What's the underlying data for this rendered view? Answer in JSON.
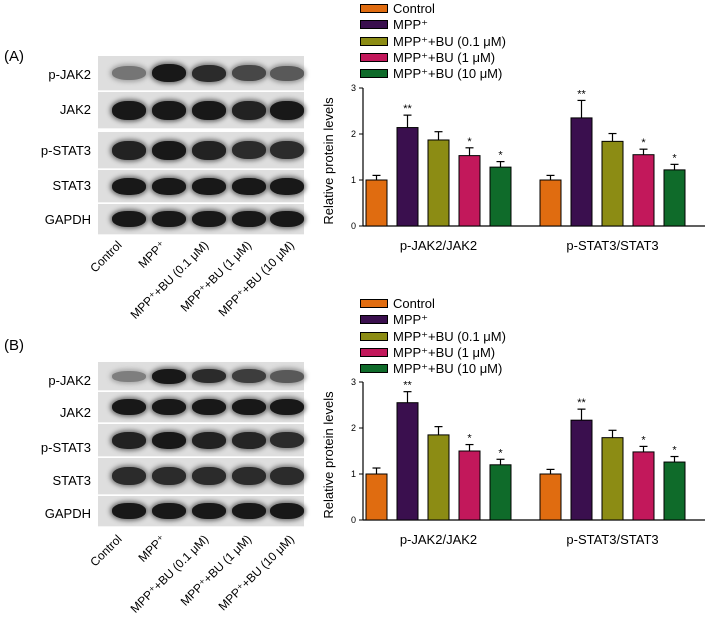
{
  "panels": [
    {
      "label": "(A)",
      "blot_rows": [
        "p-JAK2",
        "JAK2",
        "p-STAT3",
        "STAT3",
        "GAPDH"
      ],
      "lanes": [
        "Control",
        "MPP⁺",
        "MPP⁺+BU (0.1 μM)",
        "MPP⁺+BU (1 μM)",
        "MPP⁺+BU (10 μM)"
      ]
    },
    {
      "label": "(B)",
      "blot_rows": [
        "p-JAK2",
        "JAK2",
        "p-STAT3",
        "STAT3",
        "GAPDH"
      ],
      "lanes": [
        "Control",
        "MPP⁺",
        "MPP⁺+BU (0.1 μM)",
        "MPP⁺+BU (1 μM)",
        "MPP⁺+BU (10 μM)"
      ]
    }
  ],
  "legend_colors": [
    "#e06c10",
    "#3a0f4e",
    "#8c8c14",
    "#c2185b",
    "#0f6b2a"
  ],
  "chart_data": [
    {
      "type": "bar",
      "categories": [
        "p-JAK2/JAK2",
        "p-STAT3/STAT3"
      ],
      "ylabel": "Relative protein levels",
      "ylim": [
        0,
        3
      ],
      "yticks": [
        "0",
        "1",
        "2",
        "3"
      ],
      "series": [
        {
          "name": "Control",
          "values": [
            1.0,
            1.0
          ],
          "errors": [
            0.1,
            0.1
          ],
          "sig": [
            "",
            ""
          ]
        },
        {
          "name": "MPP⁺",
          "values": [
            2.14,
            2.35
          ],
          "errors": [
            0.27,
            0.38
          ],
          "sig": [
            "**",
            "**"
          ]
        },
        {
          "name": "MPP⁺+BU (0.1 μM)",
          "values": [
            1.87,
            1.84
          ],
          "errors": [
            0.18,
            0.17
          ],
          "sig": [
            "",
            ""
          ]
        },
        {
          "name": "MPP⁺+BU (1 μM)",
          "values": [
            1.53,
            1.55
          ],
          "errors": [
            0.17,
            0.12
          ],
          "sig": [
            "*",
            "*"
          ]
        },
        {
          "name": "MPP⁺+BU (10 μM)",
          "values": [
            1.28,
            1.22
          ],
          "errors": [
            0.12,
            0.12
          ],
          "sig": [
            "*",
            "*"
          ]
        }
      ]
    },
    {
      "type": "bar",
      "categories": [
        "p-JAK2/JAK2",
        "p-STAT3/STAT3"
      ],
      "ylabel": "Relative protein levels",
      "ylim": [
        0,
        3
      ],
      "yticks": [
        "0",
        "1",
        "2",
        "3"
      ],
      "series": [
        {
          "name": "Control",
          "values": [
            1.0,
            1.0
          ],
          "errors": [
            0.13,
            0.1
          ],
          "sig": [
            "",
            ""
          ]
        },
        {
          "name": "MPP⁺",
          "values": [
            2.55,
            2.17
          ],
          "errors": [
            0.24,
            0.24
          ],
          "sig": [
            "**",
            "**"
          ]
        },
        {
          "name": "MPP⁺+BU (0.1 μM)",
          "values": [
            1.85,
            1.79
          ],
          "errors": [
            0.18,
            0.16
          ],
          "sig": [
            "",
            ""
          ]
        },
        {
          "name": "MPP⁺+BU (1 μM)",
          "values": [
            1.5,
            1.48
          ],
          "errors": [
            0.14,
            0.12
          ],
          "sig": [
            "*",
            "*"
          ]
        },
        {
          "name": "MPP⁺+BU (10 μM)",
          "values": [
            1.2,
            1.26
          ],
          "errors": [
            0.12,
            0.12
          ],
          "sig": [
            "*",
            "*"
          ]
        }
      ]
    }
  ]
}
